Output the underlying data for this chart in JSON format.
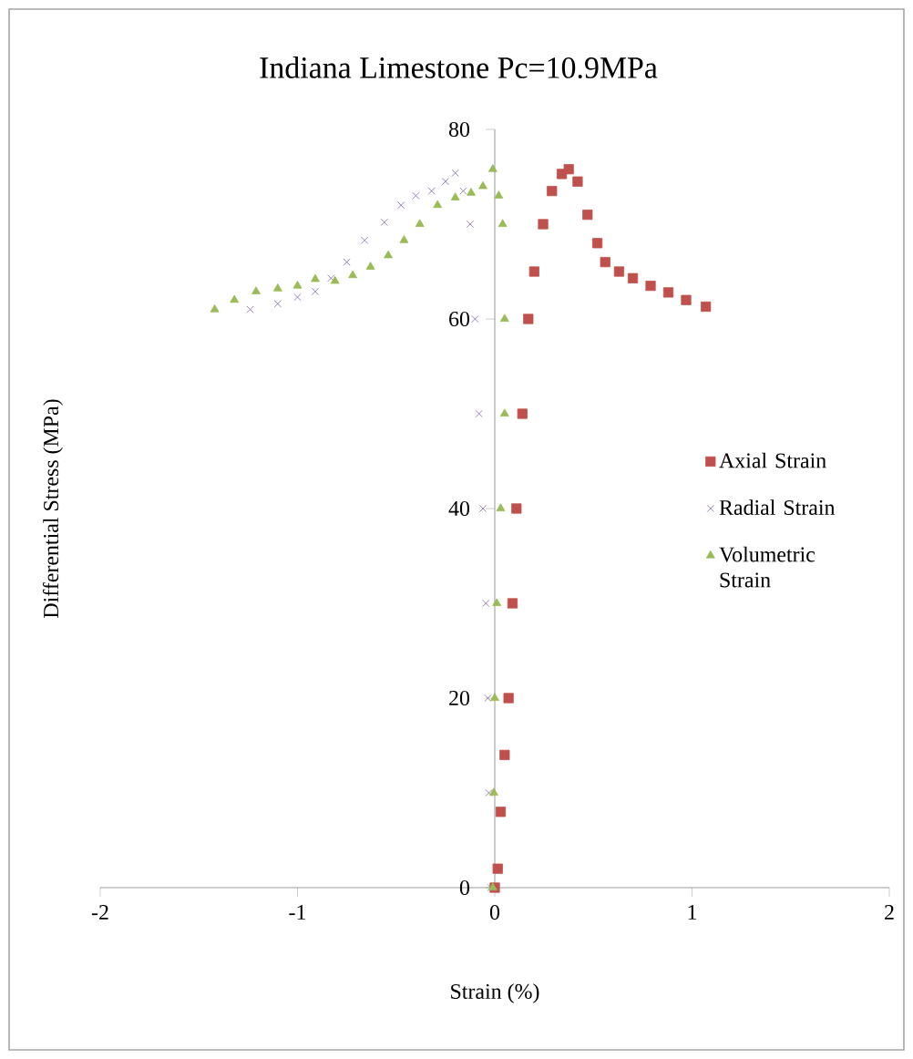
{
  "chart_data": {
    "type": "scatter",
    "title": "Indiana Limestone Pc=10.9MPa",
    "xlabel": "Strain (%)",
    "ylabel": "Differential Stress (MPa)",
    "xlim": [
      -2,
      2
    ],
    "ylim": [
      0,
      80
    ],
    "xticks": [
      -2,
      -1,
      0,
      1,
      2
    ],
    "yticks": [
      0,
      20,
      40,
      60,
      80
    ],
    "grid": false,
    "legend": "right",
    "series": [
      {
        "name": "Axial Strain",
        "color": "#c0504d",
        "marker": "square",
        "x": [
          0.0,
          0.015,
          0.03,
          0.05,
          0.07,
          0.09,
          0.11,
          0.14,
          0.17,
          0.2,
          0.245,
          0.29,
          0.34,
          0.375,
          0.42,
          0.47,
          0.52,
          0.56,
          0.63,
          0.7,
          0.79,
          0.88,
          0.97,
          1.07
        ],
        "values": [
          0,
          2,
          8,
          14,
          20,
          30,
          40,
          50,
          60,
          65,
          70,
          73.5,
          75.3,
          75.8,
          74.5,
          71,
          68,
          66,
          65,
          64.3,
          63.5,
          62.8,
          62,
          61.3
        ]
      },
      {
        "name": "Radial Strain",
        "color": "#8064a2",
        "marker": "cross",
        "x": [
          -0.02,
          -0.03,
          -0.035,
          -0.045,
          -0.06,
          -0.08,
          -0.1,
          -0.125,
          -0.16,
          -0.2,
          -0.25,
          -0.32,
          -0.4,
          -0.475,
          -0.56,
          -0.66,
          -0.75,
          -0.83,
          -0.91,
          -1.0,
          -1.1,
          -1.24
        ],
        "values": [
          0,
          10,
          20,
          30,
          40,
          50,
          60,
          70,
          73.5,
          75.4,
          74.5,
          73.5,
          73,
          72,
          70.2,
          68.3,
          66,
          64.3,
          62.9,
          62.3,
          61.6,
          61
        ]
      },
      {
        "name": "Volumetric Strain",
        "color": "#9bbb59",
        "marker": "triangle",
        "x": [
          -0.01,
          -0.005,
          0.0,
          0.01,
          0.03,
          0.05,
          0.05,
          0.04,
          0.02,
          -0.01,
          -0.06,
          -0.12,
          -0.2,
          -0.29,
          -0.38,
          -0.46,
          -0.54,
          -0.63,
          -0.72,
          -0.81,
          -0.91,
          -1.0,
          -1.1,
          -1.21,
          -1.32,
          -1.42
        ],
        "values": [
          0,
          10,
          20,
          30,
          40,
          50,
          60,
          70,
          73,
          75.8,
          74,
          73.3,
          72.8,
          72,
          70,
          68.3,
          66.7,
          65.5,
          64.6,
          64,
          64.2,
          63.5,
          63.2,
          62.9,
          62,
          61
        ]
      }
    ]
  }
}
